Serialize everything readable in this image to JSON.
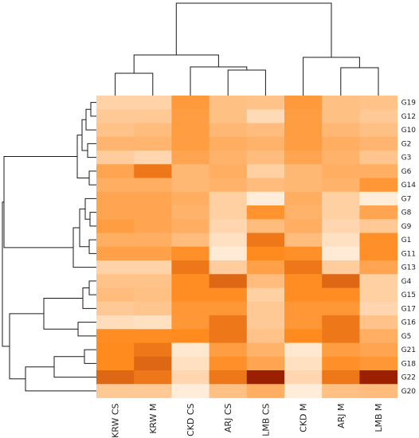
{
  "chart_data": {
    "type": "heatmap",
    "columns": [
      "KRW CS",
      "KRW M",
      "CKD CS",
      "ARJ CS",
      "LMB CS",
      "CKD M",
      "ARJ M",
      "LMB M"
    ],
    "rows": [
      "G19",
      "G12",
      "G10",
      "G2",
      "G3",
      "G6",
      "G14",
      "G7",
      "G8",
      "G9",
      "G1",
      "G11",
      "G13",
      "G4",
      "G15",
      "G17",
      "G16",
      "G5",
      "G21",
      "G18",
      "G22",
      "G20"
    ],
    "values": [
      [
        0.28,
        0.28,
        0.7,
        0.42,
        0.4,
        0.7,
        0.42,
        0.4
      ],
      [
        0.35,
        0.35,
        0.68,
        0.42,
        0.22,
        0.68,
        0.42,
        0.35
      ],
      [
        0.4,
        0.45,
        0.68,
        0.48,
        0.45,
        0.68,
        0.48,
        0.42
      ],
      [
        0.5,
        0.5,
        0.68,
        0.55,
        0.52,
        0.68,
        0.55,
        0.5
      ],
      [
        0.32,
        0.25,
        0.62,
        0.52,
        0.45,
        0.62,
        0.52,
        0.38
      ],
      [
        0.62,
        0.85,
        0.48,
        0.55,
        0.3,
        0.48,
        0.55,
        0.55
      ],
      [
        0.55,
        0.55,
        0.48,
        0.52,
        0.45,
        0.48,
        0.52,
        0.72
      ],
      [
        0.62,
        0.62,
        0.55,
        0.3,
        0.08,
        0.55,
        0.3,
        0.08
      ],
      [
        0.62,
        0.62,
        0.52,
        0.3,
        0.75,
        0.52,
        0.3,
        0.62
      ],
      [
        0.68,
        0.62,
        0.55,
        0.25,
        0.45,
        0.55,
        0.25,
        0.35
      ],
      [
        0.55,
        0.55,
        0.45,
        0.18,
        0.85,
        0.45,
        0.18,
        0.78
      ],
      [
        0.65,
        0.65,
        0.78,
        0.1,
        0.82,
        0.78,
        0.1,
        0.78
      ],
      [
        0.28,
        0.28,
        0.85,
        0.32,
        0.65,
        0.85,
        0.32,
        0.62
      ],
      [
        0.4,
        0.4,
        0.8,
        0.88,
        0.45,
        0.8,
        0.88,
        0.3
      ],
      [
        0.45,
        0.42,
        0.8,
        0.8,
        0.3,
        0.8,
        0.8,
        0.3
      ],
      [
        0.35,
        0.38,
        0.72,
        0.72,
        0.35,
        0.72,
        0.72,
        0.25
      ],
      [
        0.2,
        0.18,
        0.72,
        0.85,
        0.35,
        0.72,
        0.85,
        0.4
      ],
      [
        0.8,
        0.8,
        0.82,
        0.85,
        0.4,
        0.82,
        0.85,
        0.55
      ],
      [
        0.82,
        0.85,
        0.12,
        0.68,
        0.52,
        0.12,
        0.68,
        0.62
      ],
      [
        0.82,
        0.88,
        0.18,
        0.78,
        0.62,
        0.18,
        0.78,
        0.72
      ],
      [
        0.88,
        0.85,
        0.25,
        0.85,
        1.0,
        0.25,
        0.85,
        1.0
      ],
      [
        0.35,
        0.35,
        0.08,
        0.42,
        0.55,
        0.08,
        0.42,
        0.45
      ]
    ],
    "column_dendrogram": [
      [
        "KRW CS",
        "KRW M"
      ],
      [
        "ARJ CS",
        "LMB CS"
      ],
      [
        "CKD CS",
        "ARJ CS + LMB CS"
      ],
      [
        "ARJ M",
        "LMB M"
      ],
      [
        "CKD M",
        "ARJ M + LMB M"
      ],
      [
        "KRW CS + KRW M",
        "CKD CS + ARJ CS + LMB CS"
      ],
      [
        "left cluster",
        "right cluster"
      ]
    ],
    "colormap": {
      "low": "#fff8ee",
      "mid": "#ff8a1e",
      "high": "#9a2000"
    },
    "title": "",
    "xlabel": "",
    "ylabel": ""
  }
}
